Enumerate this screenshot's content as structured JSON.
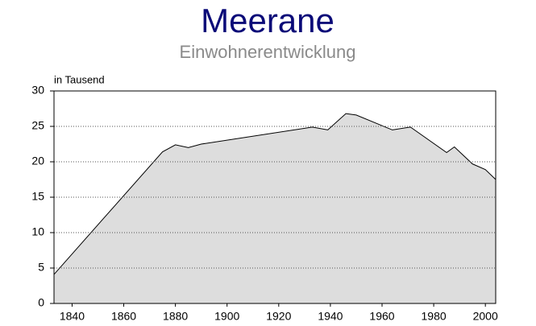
{
  "chart_data": {
    "type": "area",
    "title": "Meerane",
    "subtitle": "Einwohnerentwicklung",
    "y_label": "in Tausend",
    "x": [
      1833,
      1875,
      1880,
      1885,
      1890,
      1933,
      1939,
      1946,
      1950,
      1964,
      1971,
      1985,
      1988,
      1995,
      2000,
      2004
    ],
    "values": [
      4.1,
      21.4,
      22.4,
      22.0,
      22.5,
      24.9,
      24.5,
      26.8,
      26.6,
      24.5,
      24.9,
      21.3,
      22.1,
      19.7,
      18.9,
      17.5
    ],
    "color": "#dddddd",
    "xlim": [
      1833,
      2004
    ],
    "xticks": [
      1840,
      1860,
      1880,
      1900,
      1920,
      1940,
      1960,
      1980,
      2000
    ],
    "ylim": [
      0,
      30
    ],
    "yticks": [
      0,
      5,
      10,
      15,
      20,
      25,
      30
    ],
    "grid": true
  }
}
